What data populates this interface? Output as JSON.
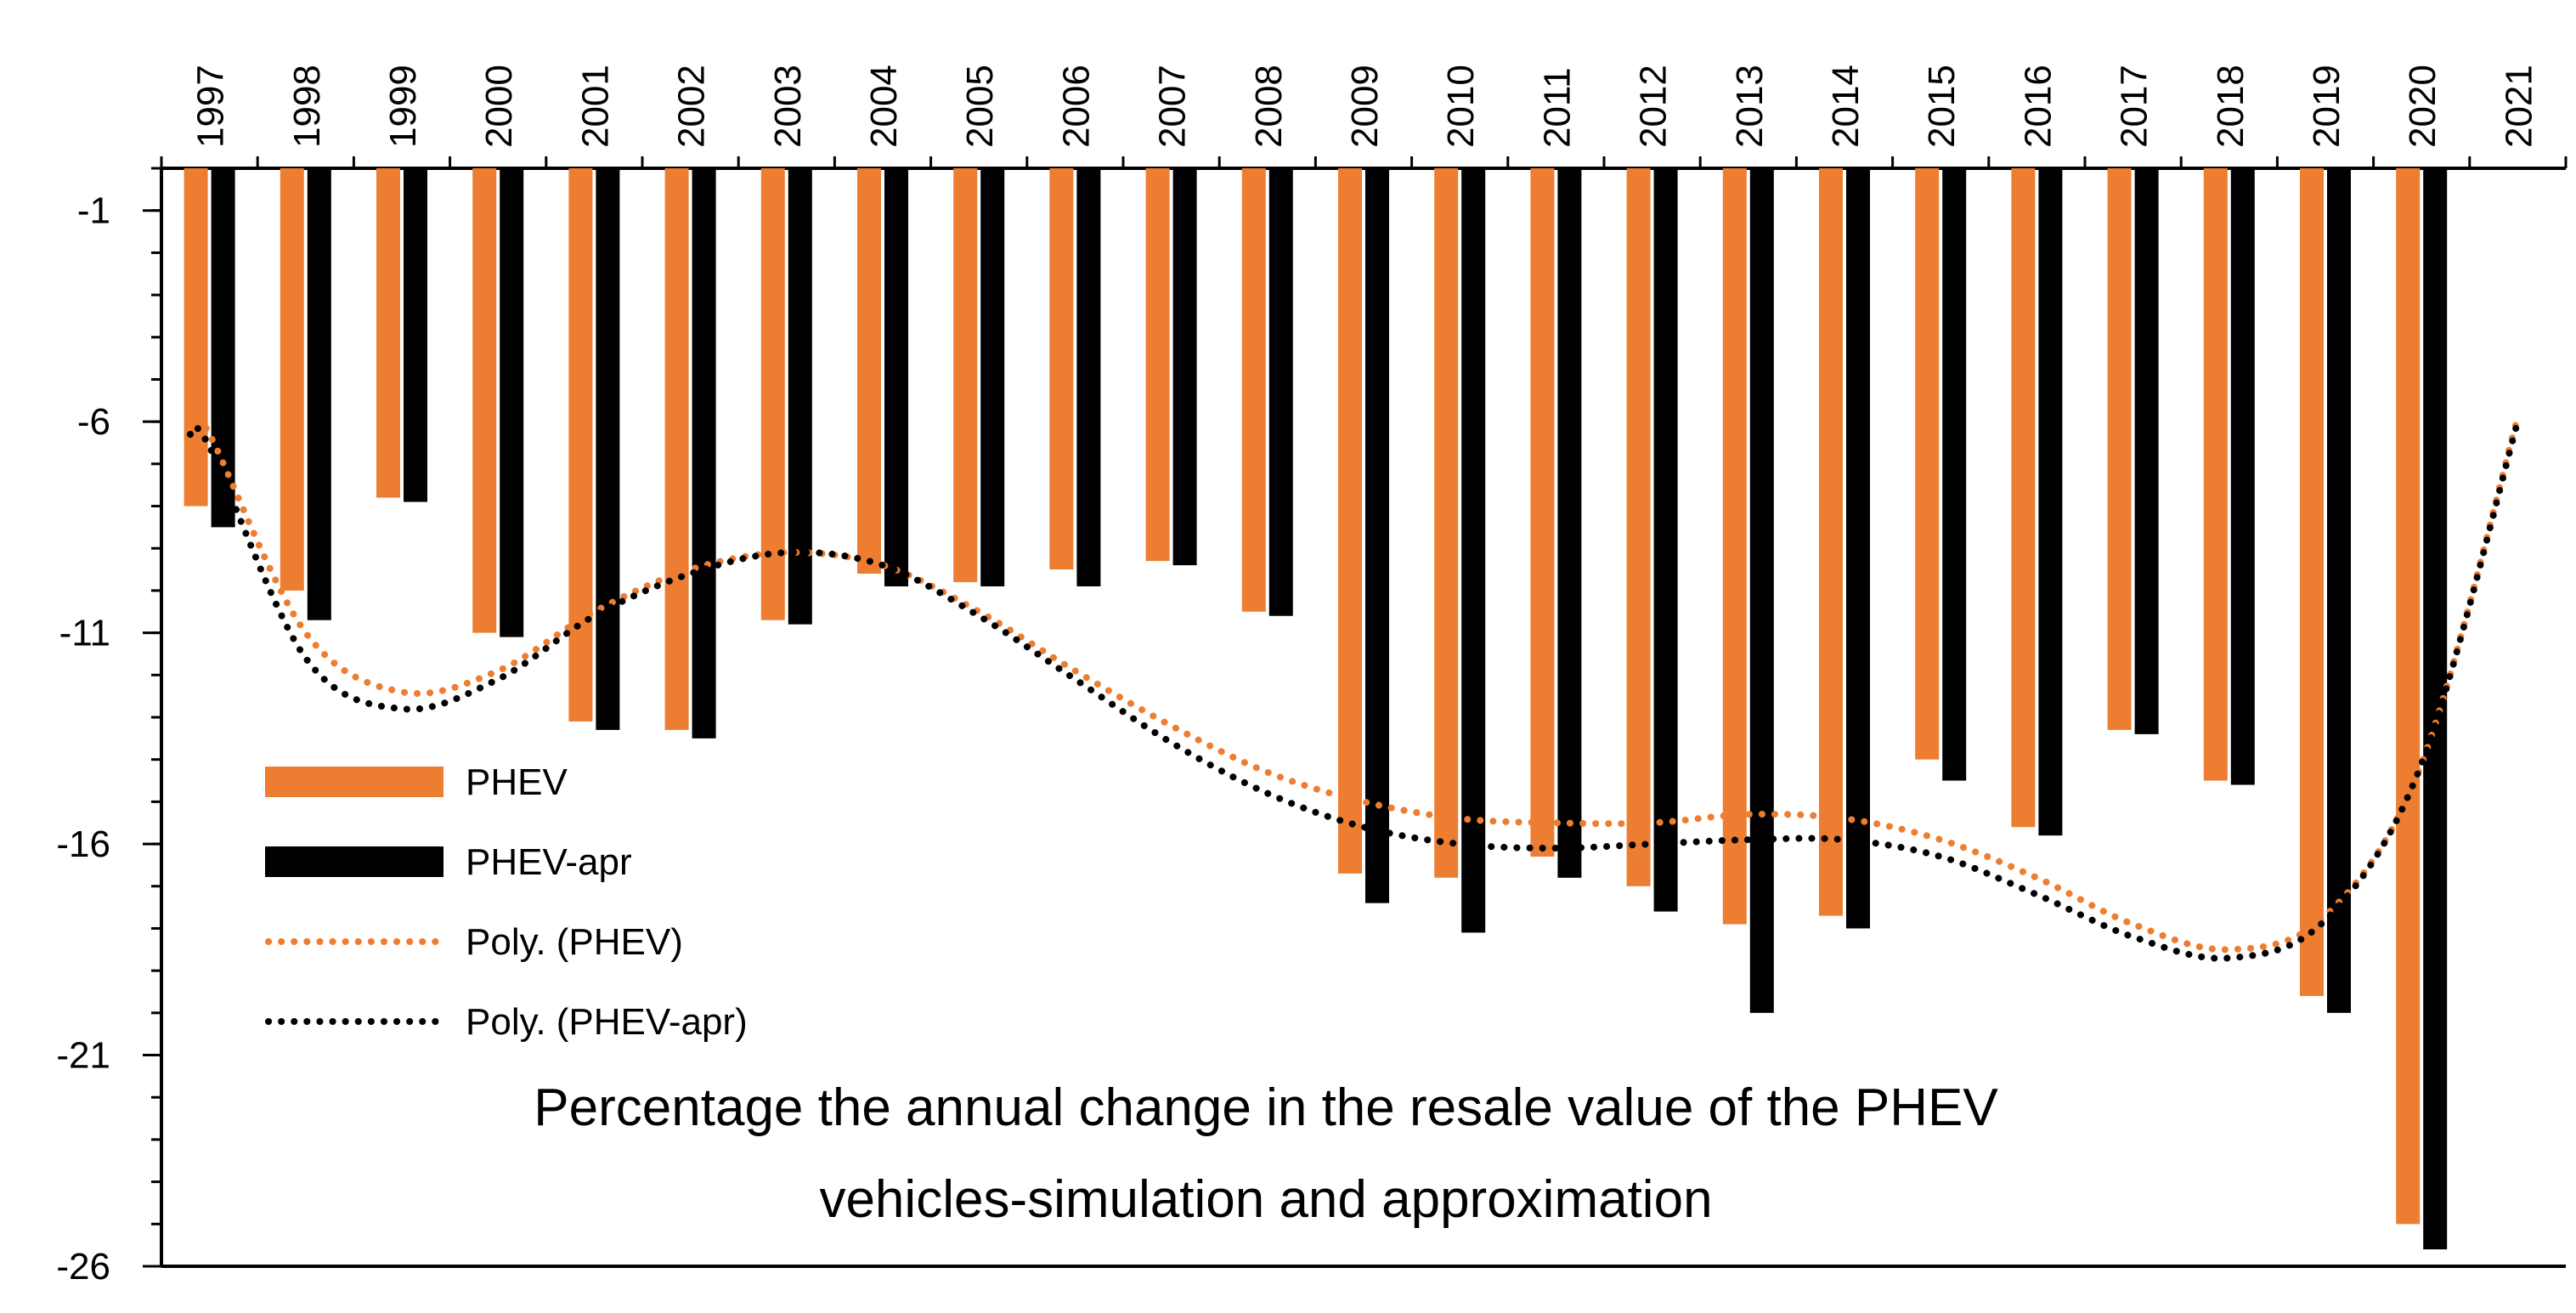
{
  "chart_data": {
    "type": "bar",
    "title_lines": [
      "Percentage the annual change in the resale value of the PHEV",
      "vehicles-simulation and approximation"
    ],
    "categories": [
      "1997",
      "1998",
      "1999",
      "2000",
      "2001",
      "2002",
      "2003",
      "2004",
      "2005",
      "2006",
      "2007",
      "2008",
      "2009",
      "2010",
      "2011",
      "2012",
      "2013",
      "2014",
      "2015",
      "2016",
      "2017",
      "2018",
      "2019",
      "2020",
      "2021"
    ],
    "series": [
      {
        "name": "PHEV",
        "color": "#ED7D31",
        "values": [
          -8.0,
          -10.0,
          -7.8,
          -11.0,
          -13.1,
          -13.3,
          -10.7,
          -9.6,
          -9.8,
          -9.5,
          -9.3,
          -10.5,
          -16.7,
          -16.8,
          -16.3,
          -17.0,
          -17.9,
          -17.7,
          -14.0,
          -15.6,
          -13.3,
          -14.5,
          -19.6,
          -25.0,
          null
        ]
      },
      {
        "name": "PHEV-apr",
        "color": "#000000",
        "values": [
          -8.5,
          -10.7,
          -7.9,
          -11.1,
          -13.3,
          -13.5,
          -10.8,
          -9.9,
          -9.9,
          -9.9,
          -9.4,
          -10.6,
          -17.4,
          -18.1,
          -16.8,
          -17.6,
          -20.0,
          -18.0,
          -14.5,
          -15.8,
          -13.4,
          -14.6,
          -20.0,
          -25.6,
          null
        ]
      }
    ],
    "trendlines": [
      {
        "name": "Poly. (PHEV)",
        "color": "#ED7D31",
        "style": "dotted",
        "points": [
          [
            1996.8,
            -5.9
          ],
          [
            1997,
            -6.3
          ],
          [
            1998,
            -11.0
          ],
          [
            1999,
            -12.4
          ],
          [
            2000,
            -11.9
          ],
          [
            2001,
            -10.5
          ],
          [
            2002,
            -9.5
          ],
          [
            2003,
            -9.1
          ],
          [
            2004,
            -9.4
          ],
          [
            2005,
            -10.5
          ],
          [
            2006,
            -11.9
          ],
          [
            2007,
            -13.2
          ],
          [
            2008,
            -14.3
          ],
          [
            2009,
            -15.0
          ],
          [
            2010,
            -15.4
          ],
          [
            2011,
            -15.5
          ],
          [
            2012,
            -15.5
          ],
          [
            2013,
            -15.3
          ],
          [
            2014,
            -15.4
          ],
          [
            2015,
            -15.9
          ],
          [
            2016,
            -16.8
          ],
          [
            2017,
            -17.9
          ],
          [
            2018,
            -18.5
          ],
          [
            2019,
            -17.7
          ],
          [
            2020,
            -14.1
          ],
          [
            2021,
            -5.9
          ]
        ]
      },
      {
        "name": "Poly. (PHEV-apr)",
        "color": "#000000",
        "style": "dotted",
        "points": [
          [
            1996.8,
            -6.3
          ],
          [
            1997,
            -6.6
          ],
          [
            1998,
            -11.6
          ],
          [
            1999,
            -12.8
          ],
          [
            2000,
            -12.1
          ],
          [
            2001,
            -10.6
          ],
          [
            2002,
            -9.6
          ],
          [
            2003,
            -9.1
          ],
          [
            2004,
            -9.4
          ],
          [
            2005,
            -10.6
          ],
          [
            2006,
            -12.1
          ],
          [
            2007,
            -13.6
          ],
          [
            2008,
            -14.8
          ],
          [
            2009,
            -15.6
          ],
          [
            2010,
            -16.0
          ],
          [
            2011,
            -16.1
          ],
          [
            2012,
            -16.0
          ],
          [
            2013,
            -15.9
          ],
          [
            2014,
            -15.9
          ],
          [
            2015,
            -16.3
          ],
          [
            2016,
            -17.2
          ],
          [
            2017,
            -18.2
          ],
          [
            2018,
            -18.7
          ],
          [
            2019,
            -17.8
          ],
          [
            2020,
            -14.1
          ],
          [
            2021,
            -6.0
          ]
        ]
      }
    ],
    "y_ticks": [
      -1,
      -6,
      -11,
      -16,
      -21,
      -26
    ],
    "ylim": [
      -26,
      0
    ],
    "x_axis_position": "top",
    "x_tick_rotation": "vertical",
    "legend_position": "left",
    "grid": false,
    "xlabel": "",
    "ylabel": ""
  }
}
